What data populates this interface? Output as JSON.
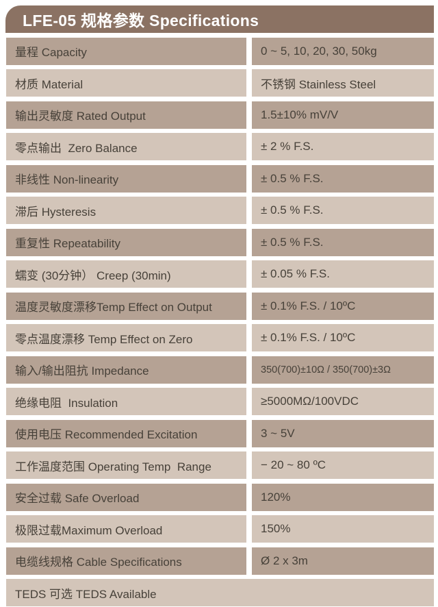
{
  "header": {
    "title": "LFE-05 规格参数 Specifications"
  },
  "colors": {
    "header_bg": "#8B7263",
    "row_dark": "#B5A294",
    "row_light": "#D3C5B9",
    "text": "#474139",
    "header_text": "#FFFFFF",
    "gap": "#FFFFFF"
  },
  "table": {
    "rows": [
      {
        "label": "量程 Capacity",
        "value": "0 ~ 5, 10, 20, 30, 50kg"
      },
      {
        "label": "材质 Material",
        "value": "不锈钢 Stainless Steel"
      },
      {
        "label": "输出灵敏度 Rated Output",
        "value": "1.5±10% mV/V"
      },
      {
        "label": "零点输出  Zero Balance",
        "value": "± 2 % F.S."
      },
      {
        "label": "非线性 Non-linearity",
        "value": "± 0.5 % F.S."
      },
      {
        "label": "滞后 Hysteresis",
        "value": "± 0.5 % F.S."
      },
      {
        "label": "重复性 Repeatability",
        "value": "± 0.5 % F.S."
      },
      {
        "label": "蠕变 (30分钟） Creep (30min)",
        "value": "± 0.05 % F.S."
      },
      {
        "label": "温度灵敏度漂移Temp Effect on Output",
        "value": "± 0.1% F.S. / 10ºC"
      },
      {
        "label": "零点温度漂移 Temp Effect on Zero",
        "value": "± 0.1% F.S. / 10ºC"
      },
      {
        "label": "输入/输出阻抗 Impedance",
        "value": "350(700)±10Ω / 350(700)±3Ω"
      },
      {
        "label": "绝缘电阻  Insulation",
        "value": "≥5000MΩ/100VDC"
      },
      {
        "label": "使用电压 Recommended Excitation",
        "value": "3 ~ 5V"
      },
      {
        "label": "工作温度范围 Operating Temp  Range",
        "value": "− 20 ~ 80 ºC"
      },
      {
        "label": "安全过载 Safe Overload",
        "value": "120%"
      },
      {
        "label": "极限过载Maximum Overload",
        "value": "150%"
      },
      {
        "label": "电缆线规格 Cable Specifications",
        "value": "Ø 2 x 3m"
      },
      {
        "label": "TEDS 可选 TEDS Available",
        "value": ""
      }
    ]
  }
}
